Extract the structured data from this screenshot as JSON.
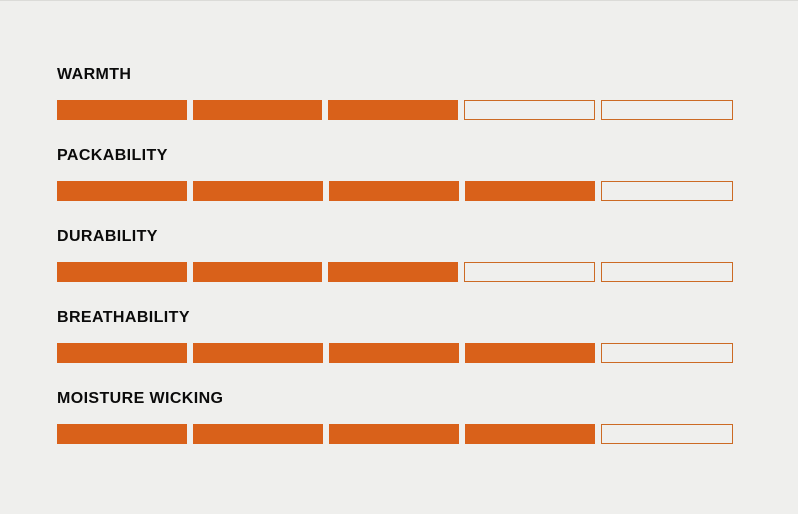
{
  "page": {
    "background_color": "#EFEFED",
    "accent_color": "#D9611A",
    "empty_segment_border_color": "#CC6A24",
    "label_color": "#0B0B0B"
  },
  "ratings": [
    {
      "label": "WARMTH",
      "value": 3,
      "max": 5
    },
    {
      "label": "PACKABILITY",
      "value": 4,
      "max": 5
    },
    {
      "label": "DURABILITY",
      "value": 3,
      "max": 5
    },
    {
      "label": "BREATHABILITY",
      "value": 4,
      "max": 5
    },
    {
      "label": "MOISTURE WICKING",
      "value": 4,
      "max": 5
    }
  ],
  "chart_data": {
    "type": "bar",
    "orientation": "horizontal-segmented",
    "categories": [
      "WARMTH",
      "PACKABILITY",
      "DURABILITY",
      "BREATHABILITY",
      "MOISTURE WICKING"
    ],
    "values": [
      3,
      4,
      3,
      4,
      4
    ],
    "ylim": [
      0,
      5
    ],
    "segments_per_row": 5,
    "title": "",
    "xlabel": "",
    "ylabel": "",
    "legend": false,
    "grid": false
  }
}
